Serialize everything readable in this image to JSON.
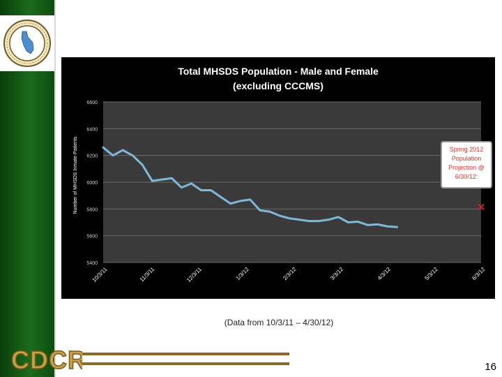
{
  "slide": {
    "caption": "(Data from 10/3/11 – 4/30/12)",
    "page_number": "16",
    "logo_text": "CDCR",
    "seal_text": "DEPARTMENT OF CORRECTIONS AND REHABILITATION"
  },
  "colors": {
    "sidebar": "#1c6b1c",
    "line": "#7fb8d9",
    "marker": "#e02020",
    "logo_fill": "#c9a04a",
    "logo_stroke": "#7a5a1a"
  },
  "chart_data": {
    "type": "line",
    "title": "Total MHSDS Population - Male and Female",
    "subtitle": "(excluding CCCMS)",
    "ylabel": "Number of MHSDS Inmate-Patients",
    "xlabel": "",
    "ylim": [
      5400,
      6600
    ],
    "yticks": [
      "5400",
      "5600",
      "5800",
      "6000",
      "6200",
      "6400",
      "6600"
    ],
    "x_tick_labels": [
      "10/3/11",
      "11/3/11",
      "12/3/11",
      "1/3/12",
      "2/3/12",
      "3/3/12",
      "4/3/12",
      "5/3/12",
      "6/3/12"
    ],
    "x_range_days": [
      0,
      270
    ],
    "grid": true,
    "series": [
      {
        "name": "MHSDS Population",
        "x_days": [
          0,
          7,
          14,
          21,
          28,
          35,
          42,
          49,
          56,
          63,
          70,
          77,
          84,
          91,
          98,
          105,
          112,
          119,
          126,
          133,
          140,
          147,
          154,
          161,
          168,
          175,
          182,
          189,
          196,
          203,
          210
        ],
        "values": [
          6260,
          6200,
          6240,
          6200,
          6130,
          6010,
          6020,
          6030,
          5960,
          5990,
          5940,
          5940,
          5890,
          5840,
          5860,
          5870,
          5790,
          5780,
          5750,
          5730,
          5720,
          5710,
          5710,
          5720,
          5740,
          5700,
          5705,
          5680,
          5685,
          5670,
          5665
        ]
      }
    ],
    "annotation": {
      "text_lines": [
        "Spring 2012",
        "Population",
        "Projection @",
        "6/30/12:"
      ],
      "marker_x_days": 270,
      "marker_value": 5820,
      "marker_symbol": "×"
    }
  }
}
